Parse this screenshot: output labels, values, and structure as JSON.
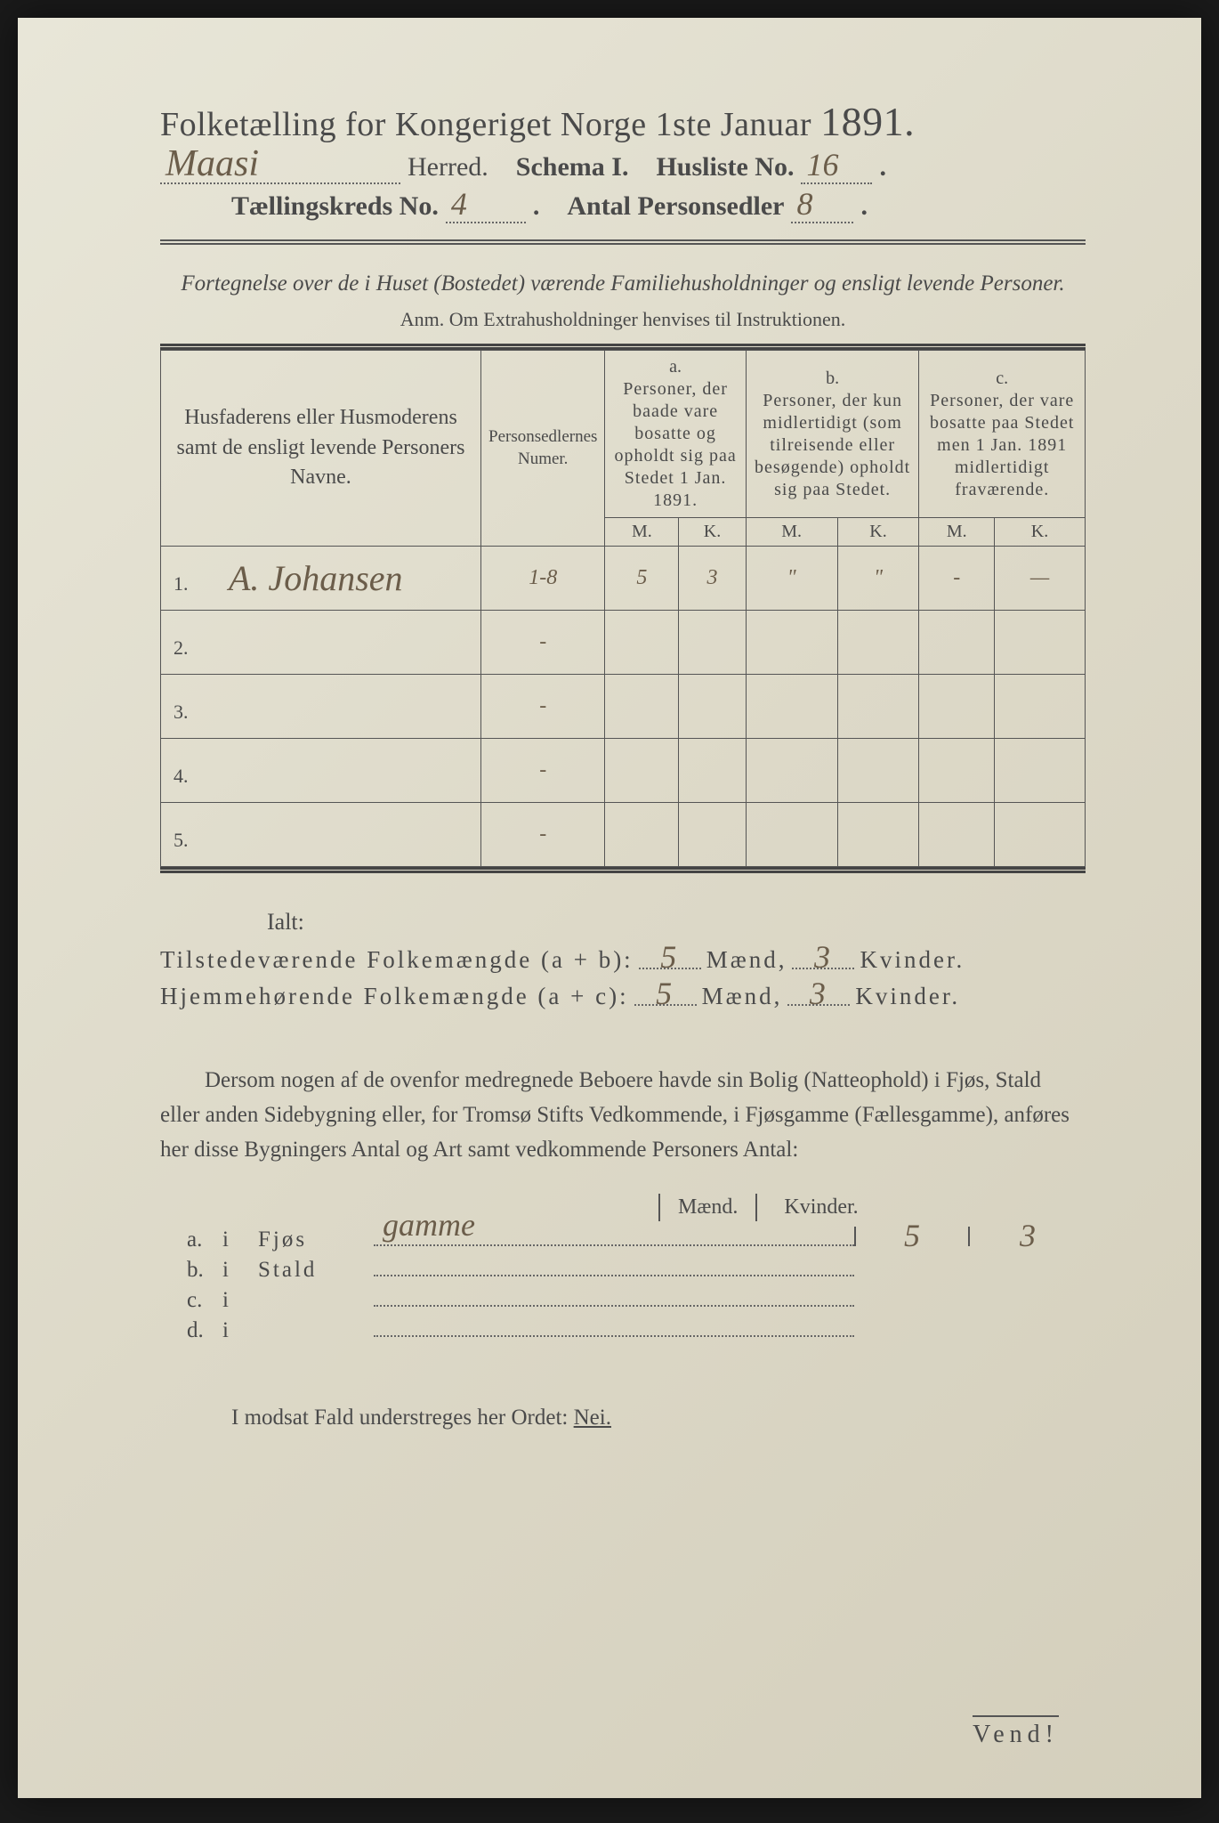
{
  "colors": {
    "paper_bg": "#ddd9c8",
    "ink": "#4a4a4a",
    "handwriting": "#6b5d4a",
    "rule": "#555555"
  },
  "typography": {
    "title_fontsize_pt": 29,
    "body_fontsize_pt": 19,
    "handwriting_family": "cursive"
  },
  "header": {
    "title_prefix": "Folketælling for Kongeriget Norge 1ste Januar ",
    "year": "1891.",
    "herred_hand": "Maasi",
    "herred_label": " Herred.",
    "schema_label": "Schema I.",
    "husliste_label": "Husliste No.",
    "husliste_no": "16",
    "kreds_label": "Tællingskreds No.",
    "kreds_no": "4",
    "personsedler_label": "Antal Personsedler",
    "personsedler_no": "8"
  },
  "subhead": {
    "line": "Fortegnelse over de i Huset (Bostedet) værende Familiehusholdninger og ensligt levende Personer.",
    "anm": "Anm. Om Extrahusholdninger henvises til Instruktionen."
  },
  "table": {
    "col_names_header": "Husfaderens eller Husmoderens samt de ensligt levende Personers Navne.",
    "col_num_header": "Personsedlernes Numer.",
    "col_a_label": "a.",
    "col_a_text": "Personer, der baade vare bosatte og opholdt sig paa Stedet 1 Jan. 1891.",
    "col_b_label": "b.",
    "col_b_text": "Personer, der kun midlertidigt (som tilreisende eller besøgende) opholdt sig paa Stedet.",
    "col_c_label": "c.",
    "col_c_text": "Personer, der vare bosatte paa Stedet men 1 Jan. 1891 midlertidigt fraværende.",
    "m": "M.",
    "k": "K.",
    "rows": [
      {
        "n": "1.",
        "name": "A. Johansen",
        "num": "1-8",
        "aM": "5",
        "aK": "3",
        "bM": "\"",
        "bK": "\"",
        "cM": "-",
        "cK": "—"
      },
      {
        "n": "2.",
        "name": "",
        "num": "-",
        "aM": "",
        "aK": "",
        "bM": "",
        "bK": "",
        "cM": "",
        "cK": ""
      },
      {
        "n": "3.",
        "name": "",
        "num": "-",
        "aM": "",
        "aK": "",
        "bM": "",
        "bK": "",
        "cM": "",
        "cK": ""
      },
      {
        "n": "4.",
        "name": "",
        "num": "-",
        "aM": "",
        "aK": "",
        "bM": "",
        "bK": "",
        "cM": "",
        "cK": ""
      },
      {
        "n": "5.",
        "name": "",
        "num": "-",
        "aM": "",
        "aK": "",
        "bM": "",
        "bK": "",
        "cM": "",
        "cK": ""
      }
    ]
  },
  "totals": {
    "ialt": "Ialt:",
    "line1_label": "Tilstedeværende Folkemængde (a + b):",
    "line2_label": "Hjemmehørende Folkemængde (a + c):",
    "maend": "Mænd,",
    "kvinder": "Kvinder.",
    "l1_m": "5",
    "l1_k": "3",
    "l2_m": "5",
    "l2_k": "3"
  },
  "para": "Dersom nogen af de ovenfor medregnede Beboere havde sin Bolig (Natteophold) i Fjøs, Stald eller anden Sidebygning eller, for Tromsø Stifts Vedkommende, i Fjøsgamme (Fællesgamme), anføres her disse Bygningers Antal og Art samt vedkommende Personers Antal:",
  "buildings": {
    "head_m": "Mænd.",
    "head_k": "Kvinder.",
    "rows": [
      {
        "label": "a.",
        "i": "i",
        "type": "Fjøs",
        "hand": "gamme",
        "m": "5",
        "k": "3"
      },
      {
        "label": "b.",
        "i": "i",
        "type": "Stald",
        "hand": "",
        "m": "",
        "k": ""
      },
      {
        "label": "c.",
        "i": "i",
        "type": "",
        "hand": "",
        "m": "",
        "k": ""
      },
      {
        "label": "d.",
        "i": "i",
        "type": "",
        "hand": "",
        "m": "",
        "k": ""
      }
    ]
  },
  "footer": {
    "text_prefix": "I modsat Fald understreges her Ordet: ",
    "nei": "Nei.",
    "vend": "Vend!"
  }
}
